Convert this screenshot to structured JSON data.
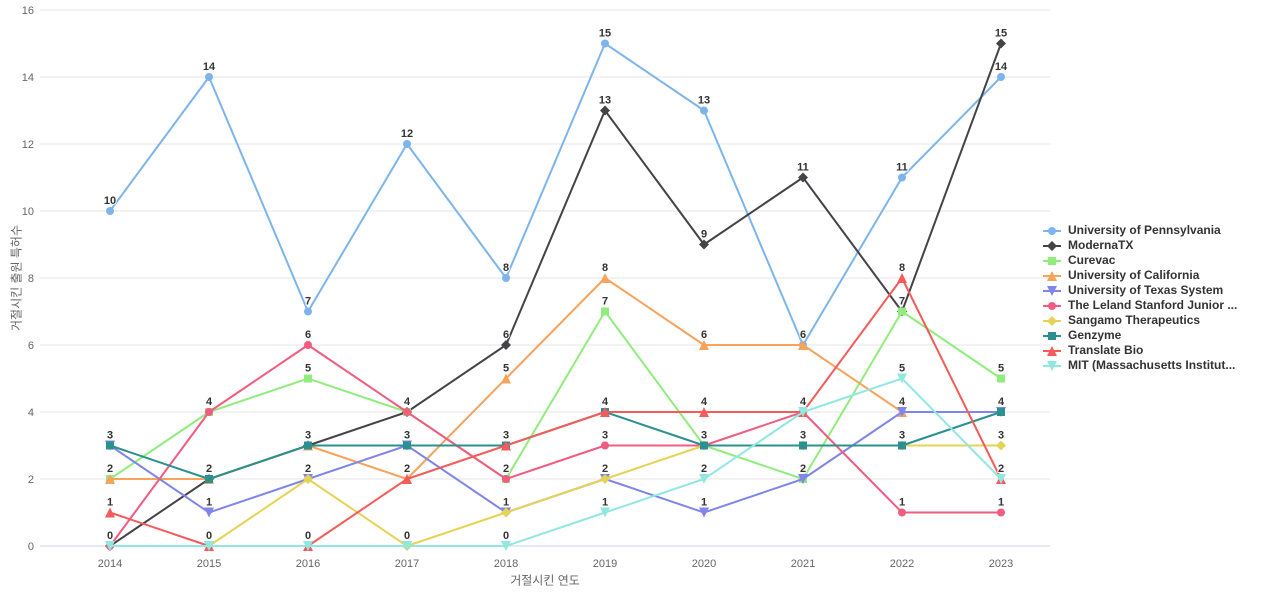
{
  "chart_data": {
    "type": "line",
    "title": "",
    "xlabel": "거절시킨 연도",
    "ylabel": "거절시킨 출원 특허수",
    "categories": [
      "2014",
      "2015",
      "2016",
      "2017",
      "2018",
      "2019",
      "2020",
      "2021",
      "2022",
      "2023"
    ],
    "ylim": [
      0,
      16
    ],
    "yticks": [
      0,
      2,
      4,
      6,
      8,
      10,
      12,
      14,
      16
    ],
    "grid": true,
    "legend_position": "right",
    "colors": {
      "gridline": "#e6e6e6",
      "axis_line": "#ccd6eb",
      "tick_label": "#666666",
      "data_label": "#333333",
      "legend_label": "#333333"
    },
    "series": [
      {
        "name": "University of Pennsylvania",
        "color": "#7cb5ec",
        "marker": "circle",
        "values": [
          10,
          14,
          7,
          12,
          8,
          15,
          13,
          6,
          11,
          14
        ]
      },
      {
        "name": "ModernaTX",
        "color": "#434348",
        "marker": "diamond",
        "values": [
          0,
          2,
          3,
          4,
          6,
          13,
          9,
          11,
          7,
          15
        ]
      },
      {
        "name": "Curevac",
        "color": "#90ed7d",
        "marker": "square",
        "values": [
          2,
          4,
          5,
          4,
          2,
          7,
          3,
          2,
          7,
          5
        ]
      },
      {
        "name": "University of California",
        "color": "#f7a35c",
        "marker": "triangle",
        "values": [
          2,
          2,
          3,
          2,
          5,
          8,
          6,
          6,
          4,
          null
        ]
      },
      {
        "name": "University of Texas System",
        "color": "#8085e9",
        "marker": "triangle-down",
        "values": [
          3,
          1,
          2,
          3,
          1,
          2,
          1,
          2,
          4,
          4
        ]
      },
      {
        "name": "The Leland Stanford Junior ...",
        "color": "#f15c80",
        "marker": "circle",
        "values": [
          0,
          4,
          6,
          4,
          2,
          3,
          3,
          4,
          1,
          1
        ]
      },
      {
        "name": "Sangamo Therapeutics",
        "color": "#e4d354",
        "marker": "diamond",
        "values": [
          null,
          0,
          2,
          0,
          1,
          2,
          3,
          3,
          3,
          3
        ]
      },
      {
        "name": "Genzyme",
        "color": "#2b908f",
        "marker": "square",
        "values": [
          3,
          2,
          3,
          3,
          3,
          4,
          3,
          3,
          3,
          4
        ]
      },
      {
        "name": "Translate Bio",
        "color": "#f45b5b",
        "marker": "triangle",
        "values": [
          1,
          0,
          0,
          2,
          3,
          4,
          4,
          4,
          8,
          2
        ]
      },
      {
        "name": "MIT (Massachusetts Institut...",
        "color": "#91e8e1",
        "marker": "triangle-down",
        "values": [
          0,
          0,
          0,
          0,
          0,
          1,
          2,
          4,
          5,
          2
        ]
      }
    ]
  }
}
